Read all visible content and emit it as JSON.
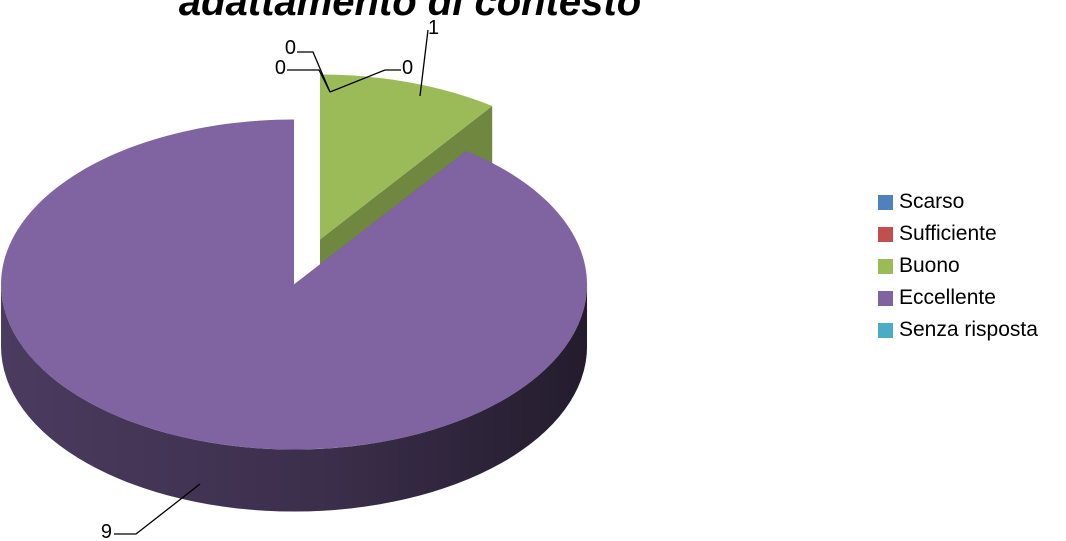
{
  "chart_data": {
    "type": "pie",
    "title": "adattamento di contesto",
    "categories": [
      "Scarso",
      "Sufficiente",
      "Buono",
      "Eccellente",
      "Senza risposta"
    ],
    "values": [
      0,
      0,
      1,
      9,
      0
    ],
    "data_labels": [
      "0",
      "0",
      "1",
      "9",
      "0"
    ],
    "colors": [
      "#4F81BD",
      "#C0504D",
      "#9BBB59",
      "#8064A2",
      "#4BACC6"
    ],
    "legend_position": "right",
    "style": "3d-exploded"
  }
}
